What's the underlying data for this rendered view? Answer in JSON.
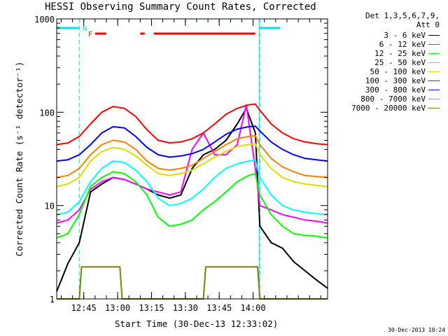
{
  "chart_data": {
    "type": "line",
    "title": "HESSI Observing Summary Count Rates, Corrected",
    "xlabel": "Start Time (30-Dec-13 12:33:02)",
    "ylabel": "Corrected Count Rate (s⁻¹ detector⁻¹)",
    "yscale": "log",
    "ylim": [
      1,
      1000
    ],
    "xlim_minutes": [
      0,
      120
    ],
    "x_start": "12:33:02",
    "y_ticks": [
      "1",
      "10",
      "100",
      "1000"
    ],
    "x_ticks": [
      {
        "label": "12:45",
        "minute": 12
      },
      {
        "label": "13:00",
        "minute": 27
      },
      {
        "label": "13:15",
        "minute": 42
      },
      {
        "label": "13:30",
        "minute": 57
      },
      {
        "label": "13:45",
        "minute": 72
      },
      {
        "label": "14:00",
        "minute": 87
      }
    ],
    "night_boundaries_minutes": [
      10,
      90
    ],
    "flags": [
      {
        "label": "N",
        "color": "#00e5e5",
        "ranges": [
          [
            0,
            10
          ],
          [
            90,
            99
          ]
        ]
      },
      {
        "label": "F",
        "color": "#ff0000",
        "ranges": [
          [
            17,
            22
          ],
          [
            37,
            39
          ],
          [
            43,
            88
          ]
        ]
      }
    ],
    "legend_header": [
      "Det 1,3,5,6,7,9,",
      "Att 0"
    ],
    "series": [
      {
        "name": "3 - 6 keV",
        "color": "#000000",
        "points": [
          [
            0,
            1.2
          ],
          [
            5,
            2.4
          ],
          [
            10,
            4
          ],
          [
            15,
            14
          ],
          [
            20,
            17
          ],
          [
            25,
            20
          ],
          [
            30,
            19
          ],
          [
            35,
            17
          ],
          [
            40,
            15
          ],
          [
            45,
            13
          ],
          [
            50,
            12
          ],
          [
            55,
            13
          ],
          [
            60,
            25
          ],
          [
            65,
            35
          ],
          [
            70,
            40
          ],
          [
            75,
            50
          ],
          [
            80,
            75
          ],
          [
            84,
            110
          ],
          [
            88,
            60
          ],
          [
            90,
            6
          ],
          [
            95,
            4
          ],
          [
            100,
            3.5
          ],
          [
            105,
            2.5
          ],
          [
            110,
            2
          ],
          [
            115,
            1.6
          ],
          [
            120,
            1.3
          ]
        ]
      },
      {
        "name": "6 - 12 keV",
        "color": "#ff00ff",
        "points": [
          [
            0,
            6.5
          ],
          [
            5,
            7
          ],
          [
            10,
            9
          ],
          [
            15,
            15
          ],
          [
            20,
            18
          ],
          [
            25,
            20
          ],
          [
            30,
            19
          ],
          [
            35,
            17
          ],
          [
            40,
            15
          ],
          [
            45,
            14
          ],
          [
            50,
            13
          ],
          [
            55,
            14
          ],
          [
            60,
            40
          ],
          [
            65,
            60
          ],
          [
            70,
            35
          ],
          [
            75,
            35
          ],
          [
            80,
            45
          ],
          [
            84,
            120
          ],
          [
            88,
            25
          ],
          [
            90,
            10
          ],
          [
            95,
            9
          ],
          [
            100,
            8
          ],
          [
            105,
            7.5
          ],
          [
            110,
            7
          ],
          [
            115,
            6.8
          ],
          [
            120,
            6.5
          ]
        ]
      },
      {
        "name": "12 - 25 keV",
        "color": "#00ff00",
        "points": [
          [
            0,
            4.5
          ],
          [
            5,
            5
          ],
          [
            10,
            8
          ],
          [
            15,
            16
          ],
          [
            20,
            20
          ],
          [
            25,
            23
          ],
          [
            30,
            22
          ],
          [
            35,
            18
          ],
          [
            40,
            13
          ],
          [
            45,
            7.5
          ],
          [
            50,
            6
          ],
          [
            55,
            6.3
          ],
          [
            60,
            7
          ],
          [
            65,
            9
          ],
          [
            70,
            11
          ],
          [
            75,
            14
          ],
          [
            80,
            18
          ],
          [
            85,
            21
          ],
          [
            88,
            22
          ],
          [
            90,
            13
          ],
          [
            95,
            8
          ],
          [
            100,
            6
          ],
          [
            105,
            5
          ],
          [
            110,
            4.8
          ],
          [
            115,
            4.7
          ],
          [
            120,
            4.5
          ]
        ]
      },
      {
        "name": "25 - 50 keV",
        "color": "#00ffff",
        "points": [
          [
            0,
            8
          ],
          [
            5,
            8.5
          ],
          [
            10,
            11
          ],
          [
            15,
            18
          ],
          [
            20,
            25
          ],
          [
            25,
            30
          ],
          [
            30,
            29
          ],
          [
            35,
            24
          ],
          [
            40,
            18
          ],
          [
            45,
            12
          ],
          [
            50,
            10
          ],
          [
            55,
            10.5
          ],
          [
            60,
            12
          ],
          [
            65,
            15
          ],
          [
            70,
            20
          ],
          [
            75,
            25
          ],
          [
            80,
            28
          ],
          [
            85,
            30
          ],
          [
            88,
            31
          ],
          [
            90,
            20
          ],
          [
            95,
            13
          ],
          [
            100,
            10
          ],
          [
            105,
            9
          ],
          [
            110,
            8.5
          ],
          [
            115,
            8.2
          ],
          [
            120,
            8
          ]
        ]
      },
      {
        "name": "50 - 100 keV",
        "color": "#dddd00",
        "points": [
          [
            0,
            16
          ],
          [
            5,
            17
          ],
          [
            10,
            20
          ],
          [
            15,
            30
          ],
          [
            20,
            38
          ],
          [
            25,
            42
          ],
          [
            30,
            40
          ],
          [
            35,
            34
          ],
          [
            40,
            27
          ],
          [
            45,
            22
          ],
          [
            50,
            21
          ],
          [
            55,
            22
          ],
          [
            60,
            24
          ],
          [
            65,
            28
          ],
          [
            70,
            33
          ],
          [
            75,
            38
          ],
          [
            80,
            43
          ],
          [
            85,
            45
          ],
          [
            88,
            46
          ],
          [
            90,
            35
          ],
          [
            95,
            25
          ],
          [
            100,
            20
          ],
          [
            105,
            18
          ],
          [
            110,
            17
          ],
          [
            115,
            16.5
          ],
          [
            120,
            16
          ]
        ]
      },
      {
        "name": "100 - 300 keV",
        "color": "#ff0000",
        "points": [
          [
            0,
            45
          ],
          [
            5,
            47
          ],
          [
            10,
            55
          ],
          [
            15,
            75
          ],
          [
            20,
            100
          ],
          [
            25,
            115
          ],
          [
            30,
            110
          ],
          [
            35,
            90
          ],
          [
            40,
            65
          ],
          [
            45,
            50
          ],
          [
            50,
            47
          ],
          [
            55,
            48
          ],
          [
            60,
            52
          ],
          [
            65,
            60
          ],
          [
            70,
            75
          ],
          [
            75,
            95
          ],
          [
            80,
            110
          ],
          [
            85,
            120
          ],
          [
            88,
            122
          ],
          [
            90,
            105
          ],
          [
            95,
            75
          ],
          [
            100,
            60
          ],
          [
            105,
            52
          ],
          [
            110,
            48
          ],
          [
            115,
            46
          ],
          [
            120,
            45
          ]
        ]
      },
      {
        "name": "300 - 800 keV",
        "color": "#0000ff",
        "points": [
          [
            0,
            30
          ],
          [
            5,
            31
          ],
          [
            10,
            35
          ],
          [
            15,
            45
          ],
          [
            20,
            60
          ],
          [
            25,
            70
          ],
          [
            30,
            68
          ],
          [
            35,
            55
          ],
          [
            40,
            42
          ],
          [
            45,
            35
          ],
          [
            50,
            33
          ],
          [
            55,
            34
          ],
          [
            60,
            36
          ],
          [
            65,
            40
          ],
          [
            70,
            48
          ],
          [
            75,
            58
          ],
          [
            80,
            66
          ],
          [
            85,
            70
          ],
          [
            88,
            71
          ],
          [
            90,
            63
          ],
          [
            95,
            48
          ],
          [
            100,
            40
          ],
          [
            105,
            35
          ],
          [
            110,
            32
          ],
          [
            115,
            31
          ],
          [
            120,
            30
          ]
        ]
      },
      {
        "name": "800 - 7000 keV",
        "color": "#ff8000",
        "points": [
          [
            0,
            20
          ],
          [
            5,
            21
          ],
          [
            10,
            25
          ],
          [
            15,
            35
          ],
          [
            20,
            45
          ],
          [
            25,
            50
          ],
          [
            30,
            48
          ],
          [
            35,
            40
          ],
          [
            40,
            30
          ],
          [
            45,
            25
          ],
          [
            50,
            24
          ],
          [
            55,
            25
          ],
          [
            60,
            27
          ],
          [
            65,
            32
          ],
          [
            70,
            38
          ],
          [
            75,
            45
          ],
          [
            80,
            52
          ],
          [
            85,
            55
          ],
          [
            88,
            56
          ],
          [
            90,
            45
          ],
          [
            95,
            32
          ],
          [
            100,
            26
          ],
          [
            105,
            23
          ],
          [
            110,
            21
          ],
          [
            115,
            20.5
          ],
          [
            120,
            20
          ]
        ]
      },
      {
        "name": "7000 - 20000 keV",
        "color": "#808000",
        "points": [
          [
            0,
            1
          ],
          [
            10,
            1
          ],
          [
            11,
            2.2
          ],
          [
            28,
            2.2
          ],
          [
            29,
            1
          ],
          [
            65,
            1
          ],
          [
            66,
            2.2
          ],
          [
            89,
            2.2
          ],
          [
            90,
            1
          ],
          [
            120,
            1
          ]
        ]
      }
    ]
  }
}
